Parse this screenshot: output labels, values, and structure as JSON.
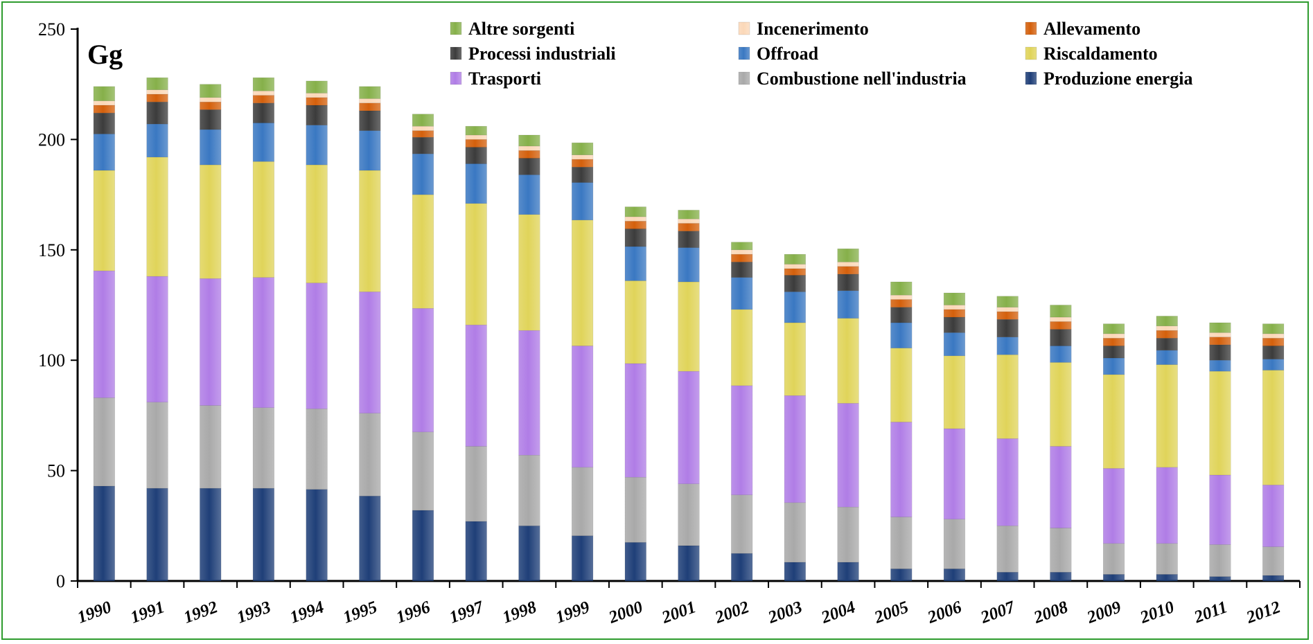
{
  "chart_data": {
    "type": "bar",
    "stacked": true,
    "unit_label": "Gg",
    "title": "",
    "xlabel": "",
    "ylabel": "",
    "ylim": [
      0,
      250
    ],
    "yticks": [
      0,
      50,
      100,
      150,
      200,
      250
    ],
    "grid": false,
    "legend_position": "top",
    "categories": [
      "1990",
      "1991",
      "1992",
      "1993",
      "1994",
      "1995",
      "1996",
      "1997",
      "1998",
      "1999",
      "2000",
      "2001",
      "2002",
      "2003",
      "2004",
      "2005",
      "2006",
      "2007",
      "2008",
      "2009",
      "2010",
      "2011",
      "2012"
    ],
    "series": [
      {
        "name": "Produzione energia",
        "color": "#1f3f78",
        "values": [
          43.0,
          42.0,
          42.0,
          42.0,
          41.5,
          38.5,
          32.0,
          27.0,
          25.0,
          20.5,
          17.5,
          16.0,
          12.5,
          8.5,
          8.5,
          5.5,
          5.5,
          4.0,
          4.0,
          3.0,
          3.0,
          2.0,
          2.5
        ]
      },
      {
        "name": "Combustione nell'industria",
        "color": "#a9a9a9",
        "values": [
          40.0,
          39.0,
          37.5,
          36.5,
          36.5,
          37.5,
          35.5,
          34.0,
          32.0,
          31.0,
          29.5,
          28.0,
          26.5,
          27.0,
          25.0,
          23.5,
          22.5,
          21.0,
          20.0,
          14.0,
          14.0,
          14.5,
          13.0
        ]
      },
      {
        "name": "Trasporti",
        "color": "#b07de6",
        "values": [
          57.5,
          57.0,
          57.5,
          59.0,
          57.0,
          55.0,
          56.0,
          55.0,
          56.5,
          55.0,
          51.5,
          51.0,
          49.5,
          48.5,
          47.0,
          43.0,
          41.0,
          39.5,
          37.0,
          34.0,
          34.5,
          31.5,
          28.0
        ]
      },
      {
        "name": "Riscaldamento",
        "color": "#e0d45a",
        "values": [
          45.5,
          54.0,
          51.5,
          52.5,
          53.5,
          55.0,
          51.5,
          55.0,
          52.5,
          57.0,
          37.5,
          40.5,
          34.5,
          33.0,
          38.5,
          33.5,
          33.0,
          38.0,
          38.0,
          42.5,
          46.5,
          47.0,
          52.0
        ]
      },
      {
        "name": "Offroad",
        "color": "#3a78c2",
        "values": [
          16.5,
          15.0,
          16.0,
          17.5,
          18.0,
          18.0,
          18.5,
          18.0,
          18.0,
          17.0,
          15.5,
          15.5,
          14.5,
          14.0,
          12.5,
          11.5,
          10.5,
          8.0,
          7.5,
          7.5,
          6.5,
          5.0,
          5.0
        ]
      },
      {
        "name": "Processi industriali",
        "color": "#3c3c3c",
        "values": [
          9.5,
          10.0,
          9.0,
          9.0,
          9.0,
          9.0,
          7.5,
          7.5,
          7.5,
          7.0,
          8.0,
          7.5,
          7.0,
          7.5,
          7.5,
          7.0,
          7.0,
          8.0,
          7.5,
          5.5,
          5.5,
          7.0,
          6.0
        ]
      },
      {
        "name": "Allevamento",
        "color": "#d4600c",
        "values": [
          3.5,
          3.5,
          3.5,
          3.5,
          3.5,
          3.5,
          3.0,
          3.5,
          3.5,
          3.5,
          3.5,
          3.5,
          3.5,
          3.0,
          3.5,
          3.5,
          3.5,
          3.5,
          3.5,
          3.5,
          3.5,
          3.5,
          3.5
        ]
      },
      {
        "name": "Incenerimento",
        "color": "#fbd8b8",
        "values": [
          2.0,
          2.0,
          2.0,
          2.0,
          2.0,
          2.0,
          2.0,
          2.0,
          2.0,
          2.0,
          2.0,
          2.0,
          2.0,
          2.0,
          2.0,
          2.0,
          2.0,
          2.0,
          2.0,
          2.0,
          2.0,
          2.0,
          2.0
        ]
      },
      {
        "name": "Altre sorgenti",
        "color": "#86b04a",
        "values": [
          6.5,
          5.5,
          6.0,
          6.0,
          5.5,
          5.5,
          5.5,
          4.0,
          5.0,
          5.5,
          4.5,
          4.0,
          3.5,
          4.5,
          6.0,
          6.0,
          5.5,
          5.0,
          5.5,
          4.5,
          4.5,
          4.5,
          4.5
        ]
      }
    ]
  }
}
